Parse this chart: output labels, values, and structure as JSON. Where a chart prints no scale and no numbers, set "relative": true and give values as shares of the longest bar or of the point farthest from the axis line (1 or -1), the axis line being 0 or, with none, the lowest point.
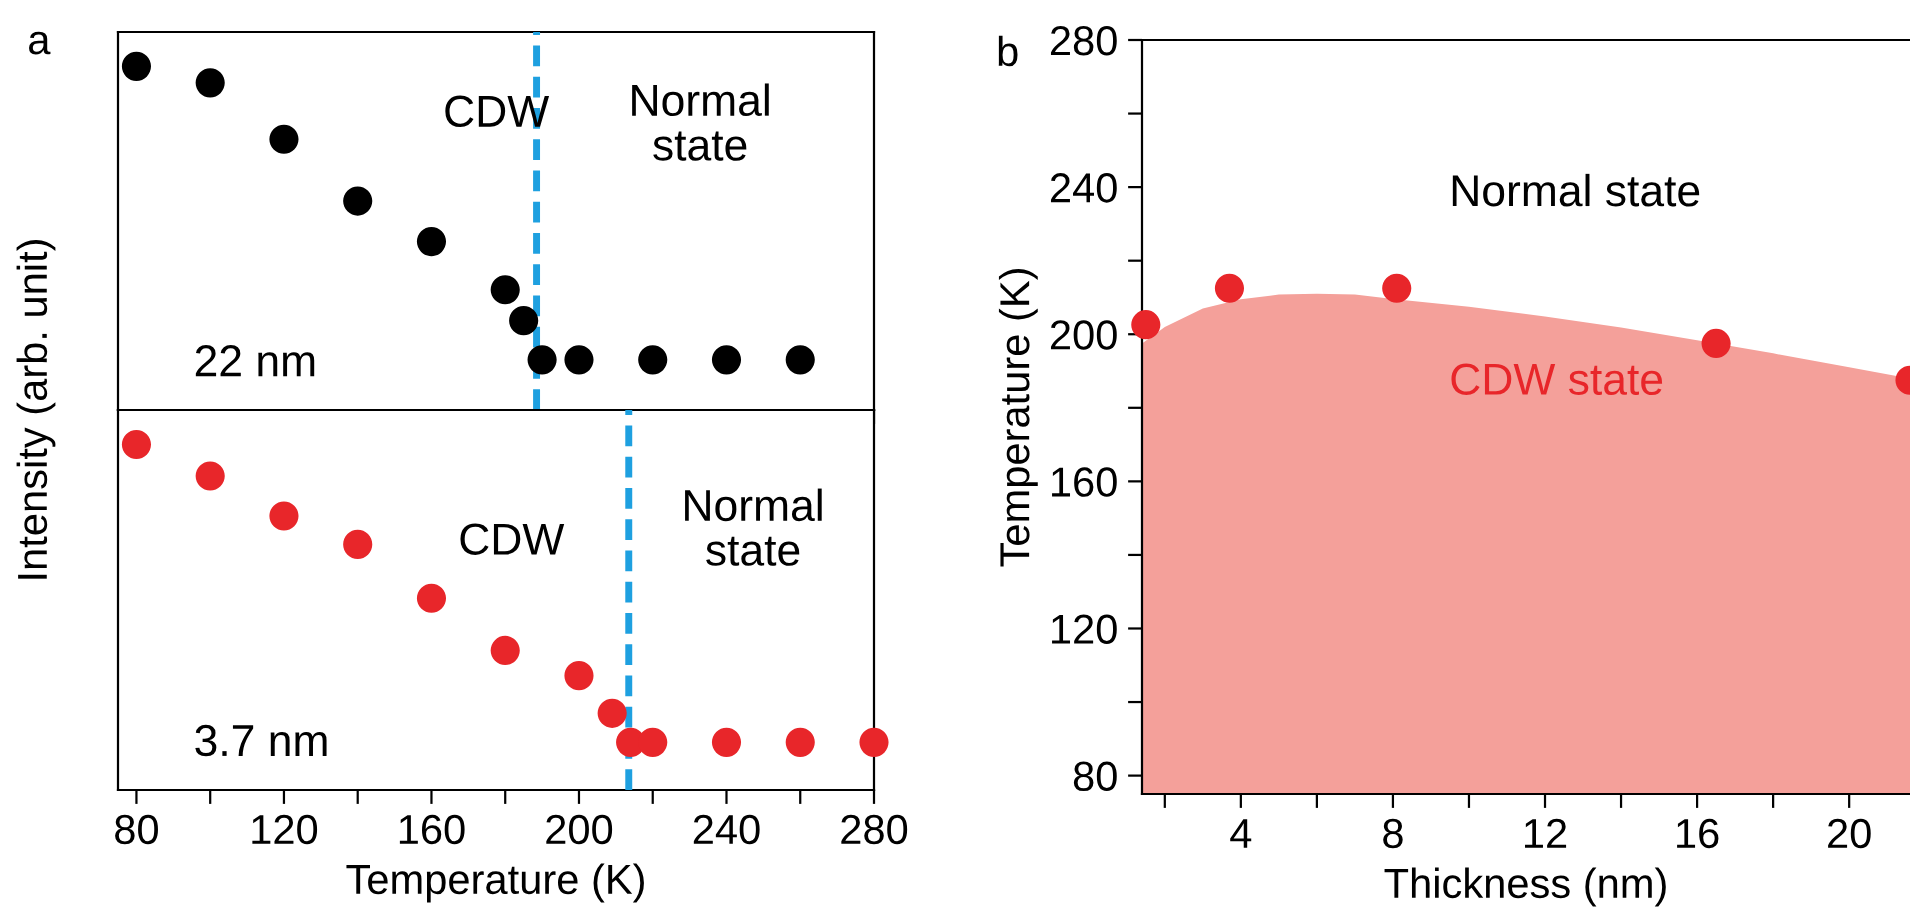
{
  "chart_data": [
    {
      "type": "scatter",
      "relative": true,
      "ylabel": "Intensity (arb. unit)",
      "annotations": [
        "a",
        "CDW",
        "Normal\nstate",
        "22 nm"
      ],
      "tick_labels": false,
      "marker": "circle",
      "xlim": [
        75,
        280
      ],
      "xticks": [
        80,
        {
          "value": 100,
          "label": null
        },
        120,
        {
          "value": 140,
          "label": null
        },
        160,
        {
          "value": 180,
          "label": null
        },
        200,
        {
          "value": 220,
          "label": null
        },
        240,
        {
          "value": 260,
          "label": null
        },
        280
      ],
      "ref_lines": [
        {
          "axis": "x",
          "value": 188.5,
          "color": "#1ea0e0",
          "line_style": "dashed"
        }
      ],
      "series": [
        {
          "color": "#000000",
          "x": [
            80,
            100,
            120,
            140,
            160,
            180,
            185,
            190,
            200,
            220,
            240,
            260
          ],
          "values": [
            1,
            0.952,
            0.788,
            0.608,
            0.49,
            0.35,
            0.26,
            0.146,
            0.146,
            0.146,
            0.146,
            0.146
          ]
        }
      ]
    },
    {
      "type": "scatter",
      "relative": true,
      "xlabel": "Temperature (K)",
      "annotations": [
        "CDW",
        "Normal\nstate",
        "3.7 nm"
      ],
      "tick_labels": "x",
      "marker": "circle",
      "xlim": [
        75,
        280
      ],
      "xticks": [
        80,
        {
          "value": 100,
          "label": null
        },
        120,
        {
          "value": 140,
          "label": null
        },
        160,
        {
          "value": 180,
          "label": null
        },
        200,
        {
          "value": 220,
          "label": null
        },
        240,
        {
          "value": 260,
          "label": null
        },
        280
      ],
      "ref_lines": [
        {
          "axis": "x",
          "value": 213.5,
          "color": "#1ea0e0",
          "line_style": "dashed"
        }
      ],
      "series": [
        {
          "color": "#e8262a",
          "x": [
            80,
            100,
            120,
            140,
            160,
            180,
            200,
            209,
            214,
            220,
            240,
            260,
            280
          ],
          "values": [
            1,
            0.909,
            0.793,
            0.711,
            0.555,
            0.404,
            0.331,
            0.222,
            0.138,
            0.138,
            0.138,
            0.138,
            0.138
          ]
        }
      ]
    },
    {
      "type": "area",
      "xlabel": "Thickness (nm)",
      "ylabel": "Temperature (K)",
      "annotations": [
        "b",
        "Normal state",
        "CDW state"
      ],
      "xlim": [
        1.4,
        21.6
      ],
      "ylim": [
        75,
        280
      ],
      "xticks": [
        {
          "value": 2,
          "label": null
        },
        4,
        {
          "value": 6,
          "label": null
        },
        8,
        {
          "value": 10,
          "label": null
        },
        12,
        {
          "value": 14,
          "label": null
        },
        16,
        {
          "value": 18,
          "label": null
        },
        20
      ],
      "yticks": [
        80,
        {
          "value": 100,
          "label": null
        },
        120,
        {
          "value": 140,
          "label": null
        },
        160,
        {
          "value": 180,
          "label": null
        },
        200,
        {
          "value": 220,
          "label": null
        },
        240,
        {
          "value": 260,
          "label": null
        },
        280
      ],
      "series": [
        {
          "type": "area",
          "color": "#f4a09a",
          "x": [
            1.4,
            2,
            3,
            4,
            5,
            6,
            7,
            8,
            10,
            12,
            14,
            16,
            18,
            20,
            21.6
          ],
          "values": [
            197.5,
            202,
            207,
            209.5,
            210.8,
            211,
            210.8,
            209.6,
            207.5,
            204.8,
            201.8,
            198.4,
            194.8,
            191,
            188
          ]
        },
        {
          "type": "scatter",
          "marker": "circle",
          "color": "#e8262a",
          "x": [
            1.5,
            3.7,
            8.1,
            16.5,
            21.6
          ],
          "values": [
            202.6,
            212.5,
            212.5,
            197.5,
            187.5
          ]
        }
      ]
    }
  ]
}
